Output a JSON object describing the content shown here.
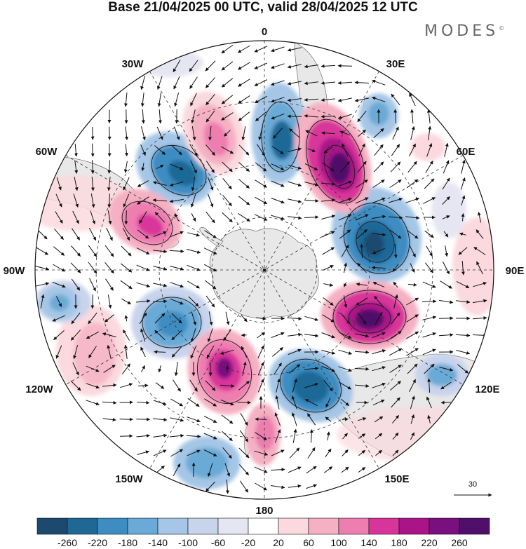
{
  "title": "Base 21/04/2025 00 UTC, valid 28/04/2025 12 UTC",
  "brand": "MODES",
  "brand_mark": "©",
  "longitude_labels": {
    "lon_0": "0",
    "lon_30e": "30E",
    "lon_60e": "60E",
    "lon_90e": "90E",
    "lon_120e": "120E",
    "lon_150e": "150E",
    "lon_180": "180",
    "lon_150w": "150W",
    "lon_120w": "120W",
    "lon_90w": "90W",
    "lon_60w": "60W",
    "lon_30w": "30W"
  },
  "reference_vector": {
    "label": "30"
  },
  "colorbar": {
    "ticks": [
      "-260",
      "-220",
      "-180",
      "-140",
      "-100",
      "-60",
      "-20",
      "20",
      "60",
      "100",
      "140",
      "180",
      "220",
      "260"
    ],
    "colors": [
      "#1c4a6e",
      "#1f6896",
      "#3e8dc2",
      "#6aaad6",
      "#a5c6e6",
      "#c8d3ec",
      "#e6e5f2",
      "#ffffff",
      "#fbd9de",
      "#f5b0c3",
      "#ee7db0",
      "#d9349a",
      "#aa1488",
      "#7a0f7f",
      "#4f0f6a"
    ]
  }
}
